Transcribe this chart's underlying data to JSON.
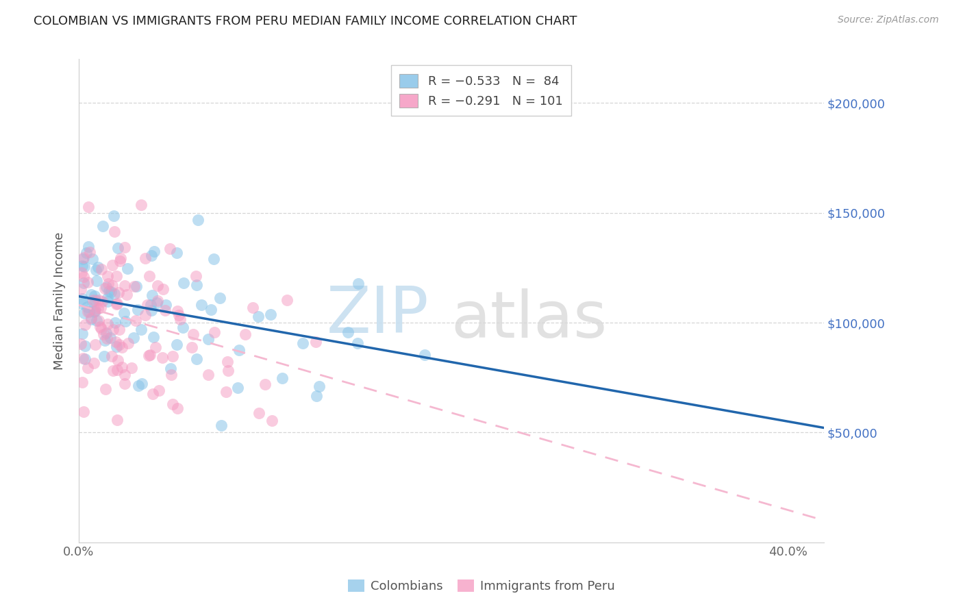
{
  "title": "COLOMBIAN VS IMMIGRANTS FROM PERU MEDIAN FAMILY INCOME CORRELATION CHART",
  "source": "Source: ZipAtlas.com",
  "ylabel": "Median Family Income",
  "yticks": [
    50000,
    100000,
    150000,
    200000
  ],
  "ytick_labels": [
    "$50,000",
    "$100,000",
    "$150,000",
    "$200,000"
  ],
  "ylim": [
    0,
    220000
  ],
  "xlim": [
    0.0,
    0.42
  ],
  "blue_label_r": "R = −0.533",
  "blue_label_n": "N =  84",
  "pink_label_r": "R = −0.291",
  "pink_label_n": "N = 101",
  "blue_scatter_color": "#89c4e8",
  "pink_scatter_color": "#f598c0",
  "blue_line_color": "#2166ac",
  "pink_line_color": "#f5b8d0",
  "right_axis_color": "#4472c4",
  "background_color": "#ffffff",
  "grid_color": "#cccccc",
  "blue_line_y0": 112000,
  "blue_line_y1": 55000,
  "pink_line_y0": 108000,
  "pink_line_y1": 10000,
  "watermark_zip_color": "#c8dff0",
  "watermark_atlas_color": "#d8d8d8"
}
